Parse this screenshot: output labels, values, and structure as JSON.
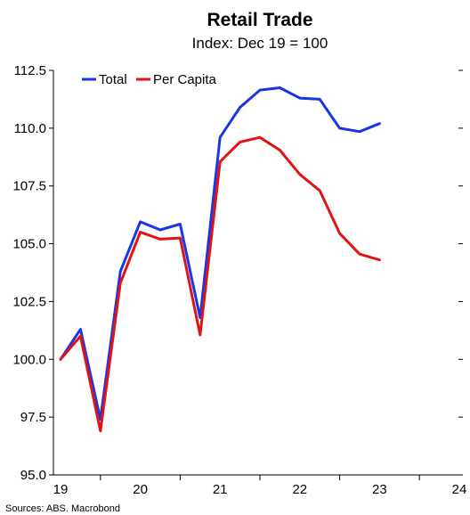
{
  "chart_data": {
    "type": "line",
    "title": "Retail Trade",
    "subtitle": "Index: Dec 19 = 100",
    "source": "Sources: ABS. Macrobond",
    "ylim": [
      95.0,
      112.5
    ],
    "yticks": [
      "95.0",
      "97.5",
      "100.0",
      "102.5",
      "105.0",
      "107.5",
      "110.0",
      "112.5"
    ],
    "xlim": [
      2019.0,
      2024.0
    ],
    "xticks": [
      {
        "label": "19",
        "value": 2019.0
      },
      {
        "label": "20",
        "value": 2020.0
      },
      {
        "label": "21",
        "value": 2021.0
      },
      {
        "label": "22",
        "value": 2022.0
      },
      {
        "label": "23",
        "value": 2023.0
      },
      {
        "label": "24",
        "value": 2024.0
      }
    ],
    "grid": false,
    "legend_position": "top-left",
    "series": [
      {
        "name": "Total",
        "color": "#1a35e6",
        "points": [
          [
            2019.0,
            100.0
          ],
          [
            2019.25,
            101.3
          ],
          [
            2019.5,
            97.4
          ],
          [
            2019.75,
            103.8
          ],
          [
            2020.0,
            105.95
          ],
          [
            2020.25,
            105.6
          ],
          [
            2020.5,
            105.85
          ],
          [
            2020.75,
            101.8
          ],
          [
            2021.0,
            109.6
          ],
          [
            2021.25,
            110.9
          ],
          [
            2021.5,
            111.65
          ],
          [
            2021.75,
            111.75
          ],
          [
            2022.0,
            111.3
          ],
          [
            2022.25,
            111.25
          ],
          [
            2022.5,
            110.0
          ],
          [
            2022.75,
            109.85
          ],
          [
            2023.0,
            110.2
          ]
        ]
      },
      {
        "name": "Per Capita",
        "color": "#e01414",
        "points": [
          [
            2019.0,
            100.0
          ],
          [
            2019.25,
            101.0
          ],
          [
            2019.5,
            96.9
          ],
          [
            2019.75,
            103.3
          ],
          [
            2020.0,
            105.5
          ],
          [
            2020.25,
            105.2
          ],
          [
            2020.5,
            105.25
          ],
          [
            2020.75,
            101.05
          ],
          [
            2021.0,
            108.55
          ],
          [
            2021.25,
            109.4
          ],
          [
            2021.5,
            109.6
          ],
          [
            2021.75,
            109.05
          ],
          [
            2022.0,
            108.0
          ],
          [
            2022.25,
            107.3
          ],
          [
            2022.5,
            105.45
          ],
          [
            2022.75,
            104.55
          ],
          [
            2023.0,
            104.3
          ]
        ]
      }
    ]
  }
}
